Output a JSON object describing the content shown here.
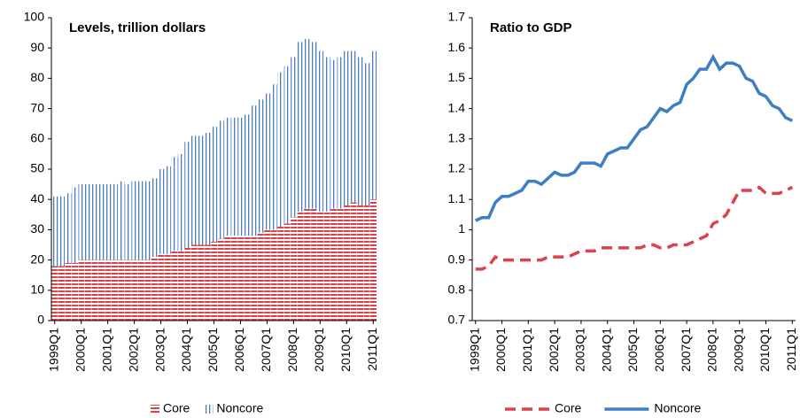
{
  "chart_data": [
    {
      "type": "bar",
      "stacked": true,
      "title": "Levels, trillion dollars",
      "categories": [
        "1999Q1",
        null,
        null,
        null,
        "2000Q1",
        null,
        null,
        null,
        "2001Q1",
        null,
        null,
        null,
        "2002Q1",
        null,
        null,
        null,
        "2003Q1",
        null,
        null,
        null,
        "2004Q1",
        null,
        null,
        null,
        "2005Q1",
        null,
        null,
        null,
        "2006Q1",
        null,
        null,
        null,
        "2007Q1",
        null,
        null,
        null,
        "2008Q1",
        null,
        null,
        null,
        "2009Q1",
        null,
        null,
        null,
        "2010Q1",
        null,
        null,
        null,
        "2011Q1"
      ],
      "series": [
        {
          "name": "Core",
          "color": "#d9434a",
          "pattern": "horizontal",
          "values": [
            18,
            18,
            19,
            19,
            20,
            20,
            20,
            20,
            20,
            20,
            20,
            20,
            20,
            20,
            20,
            21,
            22,
            22,
            23,
            23,
            24,
            25,
            25,
            25,
            26,
            27,
            28,
            28,
            28,
            28,
            28,
            29,
            30,
            30,
            31,
            32,
            34,
            36,
            37,
            37,
            36,
            36,
            37,
            37,
            38,
            39,
            38,
            38,
            40
          ]
        },
        {
          "name": "Noncore",
          "color": "#4a7ebb",
          "pattern": "vertical",
          "values": [
            23,
            23,
            23,
            25,
            25,
            25,
            25,
            25,
            25,
            25,
            26,
            25,
            26,
            26,
            26,
            26,
            28,
            29,
            31,
            32,
            35,
            36,
            36,
            37,
            38,
            39,
            39,
            39,
            39,
            40,
            43,
            44,
            45,
            48,
            51,
            52,
            53,
            56,
            56,
            55,
            53,
            51,
            49,
            50,
            51,
            50,
            49,
            47,
            49
          ]
        }
      ],
      "ylim": [
        0,
        100
      ],
      "yticks": [
        0,
        10,
        20,
        30,
        40,
        50,
        60,
        70,
        80,
        90,
        100
      ]
    },
    {
      "type": "line",
      "title": "Ratio to GDP",
      "categories": [
        "1999Q1",
        null,
        null,
        null,
        "2000Q1",
        null,
        null,
        null,
        "2001Q1",
        null,
        null,
        null,
        "2002Q1",
        null,
        null,
        null,
        "2003Q1",
        null,
        null,
        null,
        "2004Q1",
        null,
        null,
        null,
        "2005Q1",
        null,
        null,
        null,
        "2006Q1",
        null,
        null,
        null,
        "2007Q1",
        null,
        null,
        null,
        "2008Q1",
        null,
        null,
        null,
        "2009Q1",
        null,
        null,
        null,
        "2010Q1",
        null,
        null,
        null,
        "2011Q1"
      ],
      "series": [
        {
          "name": "Core",
          "color": "#d9434a",
          "style": "dashed",
          "values": [
            0.87,
            0.87,
            0.88,
            0.91,
            0.9,
            0.9,
            0.9,
            0.9,
            0.9,
            0.9,
            0.9,
            0.91,
            0.91,
            0.91,
            0.91,
            0.92,
            0.93,
            0.93,
            0.93,
            0.94,
            0.94,
            0.94,
            0.94,
            0.94,
            0.94,
            0.94,
            0.95,
            0.95,
            0.94,
            0.94,
            0.95,
            0.95,
            0.95,
            0.96,
            0.97,
            0.98,
            1.02,
            1.03,
            1.05,
            1.09,
            1.13,
            1.13,
            1.13,
            1.14,
            1.12,
            1.12,
            1.12,
            1.13,
            1.14
          ]
        },
        {
          "name": "Noncore",
          "color": "#3d7fc1",
          "style": "solid",
          "values": [
            1.03,
            1.04,
            1.04,
            1.09,
            1.11,
            1.11,
            1.12,
            1.13,
            1.16,
            1.16,
            1.15,
            1.17,
            1.19,
            1.18,
            1.18,
            1.19,
            1.22,
            1.22,
            1.22,
            1.21,
            1.25,
            1.26,
            1.27,
            1.27,
            1.3,
            1.33,
            1.34,
            1.37,
            1.4,
            1.39,
            1.41,
            1.42,
            1.48,
            1.5,
            1.53,
            1.53,
            1.57,
            1.53,
            1.55,
            1.55,
            1.54,
            1.5,
            1.49,
            1.45,
            1.44,
            1.41,
            1.4,
            1.37,
            1.36
          ]
        }
      ],
      "ylim": [
        0.7,
        1.7
      ],
      "yticks": [
        0.7,
        0.8,
        0.9,
        1,
        1.1,
        1.2,
        1.3,
        1.4,
        1.5,
        1.6,
        1.7
      ]
    }
  ]
}
